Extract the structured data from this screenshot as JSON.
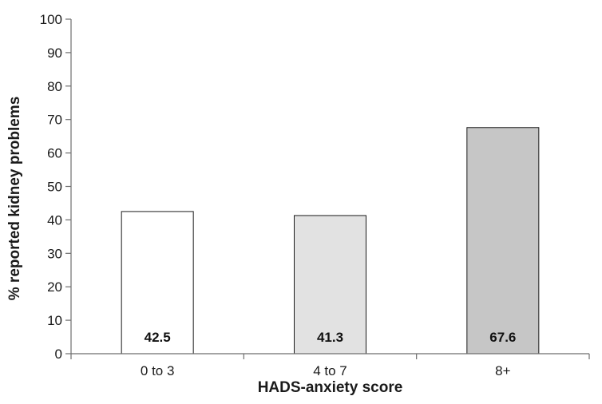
{
  "chart_data": {
    "type": "bar",
    "categories": [
      "0 to 3",
      "4 to 7",
      "8+"
    ],
    "values": [
      42.5,
      41.3,
      67.6
    ],
    "value_labels": [
      "42.5",
      "41.3",
      "67.6"
    ],
    "bar_colors": [
      "#ffffff",
      "#e2e2e2",
      "#c6c6c6"
    ],
    "title": "",
    "xlabel": "HADS-anxiety score",
    "ylabel": "% reported kidney problems",
    "ylim": [
      0,
      100
    ],
    "yticks": [
      "0",
      "10",
      "20",
      "30",
      "40",
      "50",
      "60",
      "70",
      "80",
      "90",
      "100"
    ],
    "grid": false,
    "legend": "none"
  }
}
